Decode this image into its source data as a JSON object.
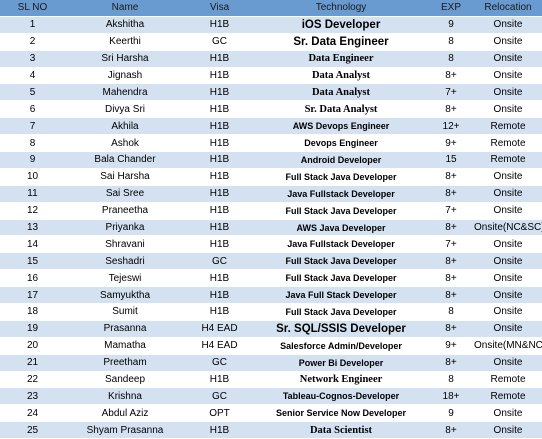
{
  "columns": [
    "SL NO",
    "Name",
    "Visa",
    "Technology",
    "EXP",
    "Relocation"
  ],
  "rows": [
    {
      "sl": "1",
      "name": "Akshitha",
      "visa": "H1B",
      "tech": "iOS Developer",
      "exp": "9",
      "relocation": "Onsite"
    },
    {
      "sl": "2",
      "name": "Keerthi",
      "visa": "GC",
      "tech": "Sr. Data Engineer",
      "exp": "8",
      "relocation": "Onsite"
    },
    {
      "sl": "3",
      "name": "Sri Harsha",
      "visa": "H1B",
      "tech": "Data Engineer",
      "exp": "8",
      "relocation": "Onsite"
    },
    {
      "sl": "4",
      "name": "Jignash",
      "visa": "H1B",
      "tech": "Data Analyst",
      "exp": "8+",
      "relocation": "Onsite"
    },
    {
      "sl": "5",
      "name": "Mahendra",
      "visa": "H1B",
      "tech": "Data Analyst",
      "exp": "7+",
      "relocation": "Onsite"
    },
    {
      "sl": "6",
      "name": "Divya Sri",
      "visa": "H1B",
      "tech": "Sr. Data Analyst",
      "exp": "8+",
      "relocation": "Onsite"
    },
    {
      "sl": "7",
      "name": "Akhila",
      "visa": "H1B",
      "tech": "AWS Devops Engineer",
      "exp": "12+",
      "relocation": "Remote"
    },
    {
      "sl": "8",
      "name": "Ashok",
      "visa": "H1B",
      "tech": "Devops Engineer",
      "exp": "9+",
      "relocation": "Remote"
    },
    {
      "sl": "9",
      "name": "Bala Chander",
      "visa": "H1B",
      "tech": "Android Developer",
      "exp": "15",
      "relocation": "Remote"
    },
    {
      "sl": "10",
      "name": "Sai Harsha",
      "visa": "H1B",
      "tech": "Full Stack Java Developer",
      "exp": "8+",
      "relocation": "Onsite"
    },
    {
      "sl": "11",
      "name": "Sai Sree",
      "visa": "H1B",
      "tech": "Java Fullstack Developer",
      "exp": "8+",
      "relocation": "Onsite"
    },
    {
      "sl": "12",
      "name": "Praneetha",
      "visa": "H1B",
      "tech": "Full Stack Java Developer",
      "exp": "7+",
      "relocation": "Onsite"
    },
    {
      "sl": "13",
      "name": "Priyanka",
      "visa": "H1B",
      "tech": "AWS Java Developer",
      "exp": "8+",
      "relocation": "Onsite(NC&SC)"
    },
    {
      "sl": "14",
      "name": "Shravani",
      "visa": "H1B",
      "tech": "Java Fullstack Developer",
      "exp": "7+",
      "relocation": "Onsite"
    },
    {
      "sl": "15",
      "name": "Seshadri",
      "visa": "GC",
      "tech": "Full Stack Java Developer",
      "exp": "8+",
      "relocation": "Onsite"
    },
    {
      "sl": "16",
      "name": "Tejeswi",
      "visa": "H1B",
      "tech": "Full Stack Java Developer",
      "exp": "8+",
      "relocation": "Onsite"
    },
    {
      "sl": "17",
      "name": "Samyuktha",
      "visa": "H1B",
      "tech": "Java Full Stack Developer",
      "exp": "8+",
      "relocation": "Onsite"
    },
    {
      "sl": "18",
      "name": "Sumit",
      "visa": "H1B",
      "tech": "Full Stack Java Developer",
      "exp": "8",
      "relocation": "Onsite"
    },
    {
      "sl": "19",
      "name": "Prasanna",
      "visa": "H4 EAD",
      "tech": "Sr. SQL/SSIS Developer",
      "exp": "8+",
      "relocation": "Onsite"
    },
    {
      "sl": "20",
      "name": "Mamatha",
      "visa": "H4 EAD",
      "tech": "Salesforce Admin/Developer",
      "exp": "9+",
      "relocation": "Onsite(MN&NC)"
    },
    {
      "sl": "21",
      "name": "Preetham",
      "visa": "GC",
      "tech": "Power Bi Developer",
      "exp": "8+",
      "relocation": "Onsite"
    },
    {
      "sl": "22",
      "name": "Sandeep",
      "visa": "H1B",
      "tech": "Network Engineer",
      "exp": "8",
      "relocation": "Remote"
    },
    {
      "sl": "23",
      "name": "Krishna",
      "visa": "GC",
      "tech": "Tableau-Cognos-Developer",
      "exp": "18+",
      "relocation": "Remote"
    },
    {
      "sl": "24",
      "name": "Abdul Aziz",
      "visa": "OPT",
      "tech": "Senior Service Now Developer",
      "exp": "9",
      "relocation": "Onsite"
    },
    {
      "sl": "25",
      "name": "Shyam Prasanna",
      "visa": "H1B",
      "tech": "Data Scientist",
      "exp": "8+",
      "relocation": "Onsite"
    }
  ]
}
